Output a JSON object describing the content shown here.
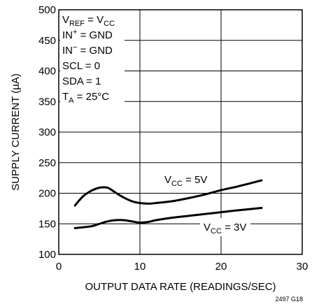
{
  "chart_data": {
    "type": "line",
    "xlabel": "OUTPUT DATA RATE (READINGS/SEC)",
    "ylabel": "SUPPLY CURRENT (µA)",
    "xlim": [
      0,
      30
    ],
    "ylim": [
      100,
      500
    ],
    "x_ticks": [
      "0",
      "10",
      "20",
      "30"
    ],
    "y_ticks": [
      "100",
      "150",
      "200",
      "250",
      "300",
      "350",
      "400",
      "450",
      "500"
    ],
    "grid": true,
    "conditions": [
      {
        "main": "V",
        "sub": "REF",
        "rest": " = V",
        "sub2": "CC"
      },
      {
        "main": "IN",
        "sup": "+",
        "rest": " = GND"
      },
      {
        "main": "IN",
        "sup": "−",
        "rest": " = GND"
      },
      {
        "main": "SCL = 0"
      },
      {
        "main": "SDA = 1"
      },
      {
        "main": "T",
        "sub": "A",
        "rest": " = 25°C"
      }
    ],
    "series": [
      {
        "name": "VCC = 5V",
        "label_main": "V",
        "label_sub": "CC",
        "label_rest": " = 5V",
        "x": [
          2,
          3,
          4,
          5,
          6,
          7,
          8,
          9,
          10,
          11,
          12,
          14,
          16,
          18,
          20,
          22,
          25
        ],
        "y": [
          180,
          195,
          204,
          209,
          209,
          201,
          193,
          187,
          184,
          183,
          184,
          187,
          192,
          198,
          205,
          211,
          221
        ]
      },
      {
        "name": "VCC = 3V",
        "label_main": "V",
        "label_sub": "CC",
        "label_rest": " = 3V",
        "x": [
          2,
          4,
          5,
          6,
          7,
          8,
          9,
          10,
          11,
          12,
          14,
          16,
          18,
          20,
          22,
          25
        ],
        "y": [
          143,
          146,
          150,
          154,
          156,
          156,
          154,
          152,
          153,
          156,
          160,
          163,
          166,
          169,
          172,
          176
        ]
      }
    ],
    "figure_id": "2497 G18"
  }
}
